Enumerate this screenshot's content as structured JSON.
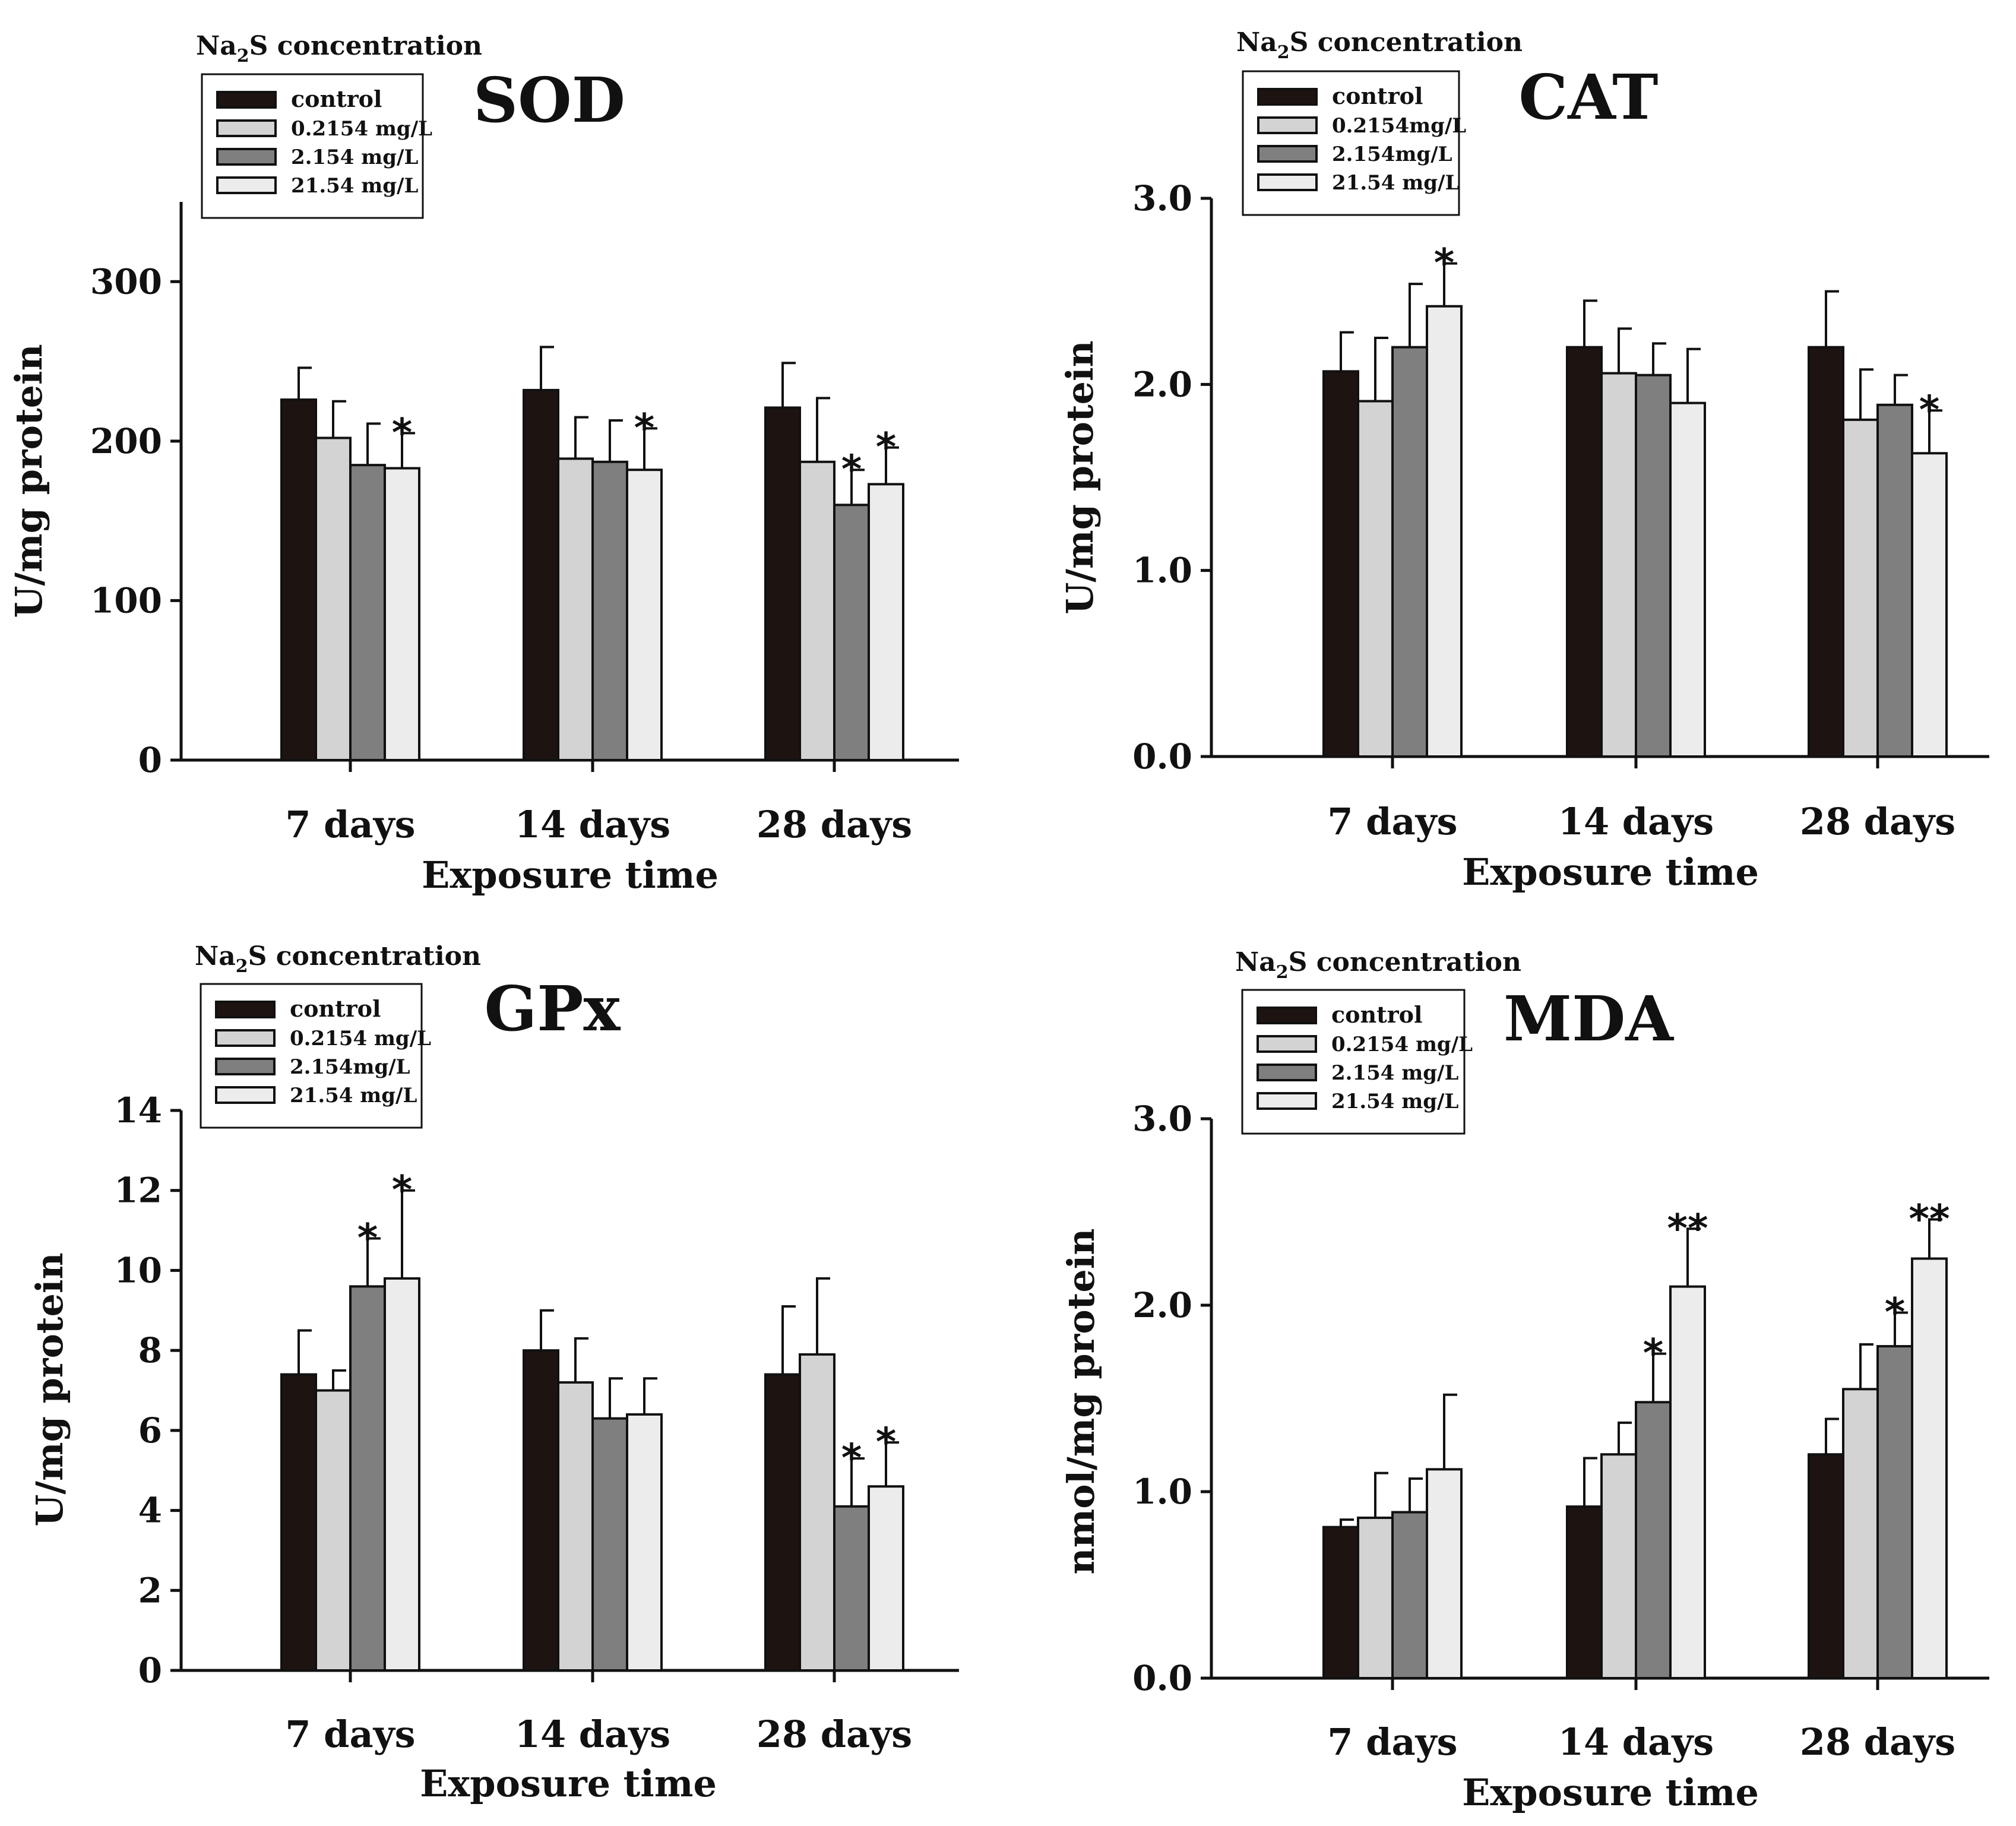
{
  "colors": {
    "control": "#1d1412",
    "c1": "#d3d3d3",
    "c2": "#7f7f7f",
    "c3": "#ececec"
  },
  "chart_data": [
    {
      "type": "bar",
      "title": "SOD",
      "xlabel": "Exposure time",
      "ylabel": "U/mg protein",
      "ylim": [
        0,
        350
      ],
      "yticks": [
        "0",
        "100",
        "200",
        "300"
      ],
      "yticks_values": [
        0,
        100,
        200,
        300
      ],
      "categories": [
        "7 days",
        "14 days",
        "28 days"
      ],
      "legend": {
        "title_main": "Na",
        "title_sub": "2",
        "title_rest": "S concentration",
        "placement": "top-left"
      },
      "series": [
        {
          "name": "control",
          "values": [
            226,
            232,
            221
          ],
          "errors": [
            20,
            27,
            28
          ],
          "sig": [
            "",
            "",
            ""
          ]
        },
        {
          "name": "0.2154 mg/L",
          "values": [
            202,
            189,
            187
          ],
          "errors": [
            23,
            26,
            40
          ],
          "sig": [
            "",
            "",
            ""
          ]
        },
        {
          "name": "2.154 mg/L",
          "values": [
            185,
            187,
            160
          ],
          "errors": [
            26,
            26,
            22
          ],
          "sig": [
            "",
            "",
            "*"
          ]
        },
        {
          "name": "21.54 mg/L",
          "values": [
            183,
            182,
            173
          ],
          "errors": [
            22,
            26,
            23
          ],
          "sig": [
            "*",
            "*",
            "*"
          ]
        }
      ]
    },
    {
      "type": "bar",
      "title": "CAT",
      "xlabel": "Exposure time",
      "ylabel": "U/mg protein",
      "ylim": [
        0,
        3
      ],
      "yticks": [
        "0.0",
        "1.0",
        "2.0",
        "3.0"
      ],
      "yticks_values": [
        0,
        1,
        2,
        3
      ],
      "categories": [
        "7 days",
        "14 days",
        "28 days"
      ],
      "legend": {
        "title_main": "Na",
        "title_sub": "2",
        "title_rest": "S concentration",
        "placement": "top-left"
      },
      "series": [
        {
          "name": "control",
          "values": [
            2.07,
            2.2,
            2.2
          ],
          "errors": [
            0.21,
            0.25,
            0.3
          ],
          "sig": [
            "",
            "",
            ""
          ]
        },
        {
          "name": "0.2154mg/L",
          "values": [
            1.91,
            2.06,
            1.81
          ],
          "errors": [
            0.34,
            0.24,
            0.27
          ],
          "sig": [
            "",
            "",
            ""
          ]
        },
        {
          "name": "2.154mg/L",
          "values": [
            2.2,
            2.05,
            1.89
          ],
          "errors": [
            0.34,
            0.17,
            0.16
          ],
          "sig": [
            "",
            "",
            ""
          ]
        },
        {
          "name": "21.54 mg/L",
          "values": [
            2.42,
            1.9,
            1.63
          ],
          "errors": [
            0.23,
            0.29,
            0.23
          ],
          "sig": [
            "*",
            "",
            "*"
          ]
        }
      ]
    },
    {
      "type": "bar",
      "title": "GPx",
      "xlabel": "Exposure time",
      "ylabel": "U/mg protein",
      "ylim": [
        0,
        14
      ],
      "yticks": [
        "0",
        "2",
        "4",
        "6",
        "8",
        "10",
        "12",
        "14"
      ],
      "yticks_values": [
        0,
        2,
        4,
        6,
        8,
        10,
        12,
        14
      ],
      "categories": [
        "7 days",
        "14 days",
        "28 days"
      ],
      "legend": {
        "title_main": "Na",
        "title_sub": "2",
        "title_rest": "S concentration",
        "placement": "top-left"
      },
      "series": [
        {
          "name": "control",
          "values": [
            7.4,
            8.0,
            7.4
          ],
          "errors": [
            1.1,
            1.0,
            1.7
          ],
          "sig": [
            "",
            "",
            ""
          ]
        },
        {
          "name": "0.2154 mg/L",
          "values": [
            7.0,
            7.2,
            7.9
          ],
          "errors": [
            0.5,
            1.1,
            1.9
          ],
          "sig": [
            "",
            "",
            ""
          ]
        },
        {
          "name": "2.154mg/L",
          "values": [
            9.6,
            6.3,
            4.1
          ],
          "errors": [
            1.2,
            1.0,
            1.2
          ],
          "sig": [
            "*",
            "",
            "*"
          ]
        },
        {
          "name": "21.54 mg/L",
          "values": [
            9.8,
            6.4,
            4.6
          ],
          "errors": [
            2.2,
            0.9,
            1.1
          ],
          "sig": [
            "*",
            "",
            "*"
          ]
        }
      ]
    },
    {
      "type": "bar",
      "title": "MDA",
      "xlabel": "Exposure time",
      "ylabel": "nmol/mg protein",
      "ylim": [
        0,
        3
      ],
      "yticks": [
        "0.0",
        "1.0",
        "2.0",
        "3.0"
      ],
      "yticks_values": [
        0,
        1,
        2,
        3
      ],
      "categories": [
        "7 days",
        "14 days",
        "28 days"
      ],
      "legend": {
        "title_main": "Na",
        "title_sub": "2",
        "title_rest": "S concentration",
        "placement": "top-left"
      },
      "series": [
        {
          "name": "control",
          "values": [
            0.81,
            0.92,
            1.2
          ],
          "errors": [
            0.04,
            0.26,
            0.19
          ],
          "sig": [
            "",
            "",
            ""
          ]
        },
        {
          "name": "0.2154 mg/L",
          "values": [
            0.86,
            1.2,
            1.55
          ],
          "errors": [
            0.24,
            0.17,
            0.24
          ],
          "sig": [
            "",
            "",
            ""
          ]
        },
        {
          "name": "2.154 mg/L",
          "values": [
            0.89,
            1.48,
            1.78
          ],
          "errors": [
            0.18,
            0.26,
            0.18
          ],
          "sig": [
            "",
            "*",
            "*"
          ]
        },
        {
          "name": "21.54 mg/L",
          "values": [
            1.12,
            2.1,
            2.25
          ],
          "errors": [
            0.4,
            0.31,
            0.21
          ],
          "sig": [
            "",
            "**",
            "**"
          ]
        }
      ]
    }
  ]
}
